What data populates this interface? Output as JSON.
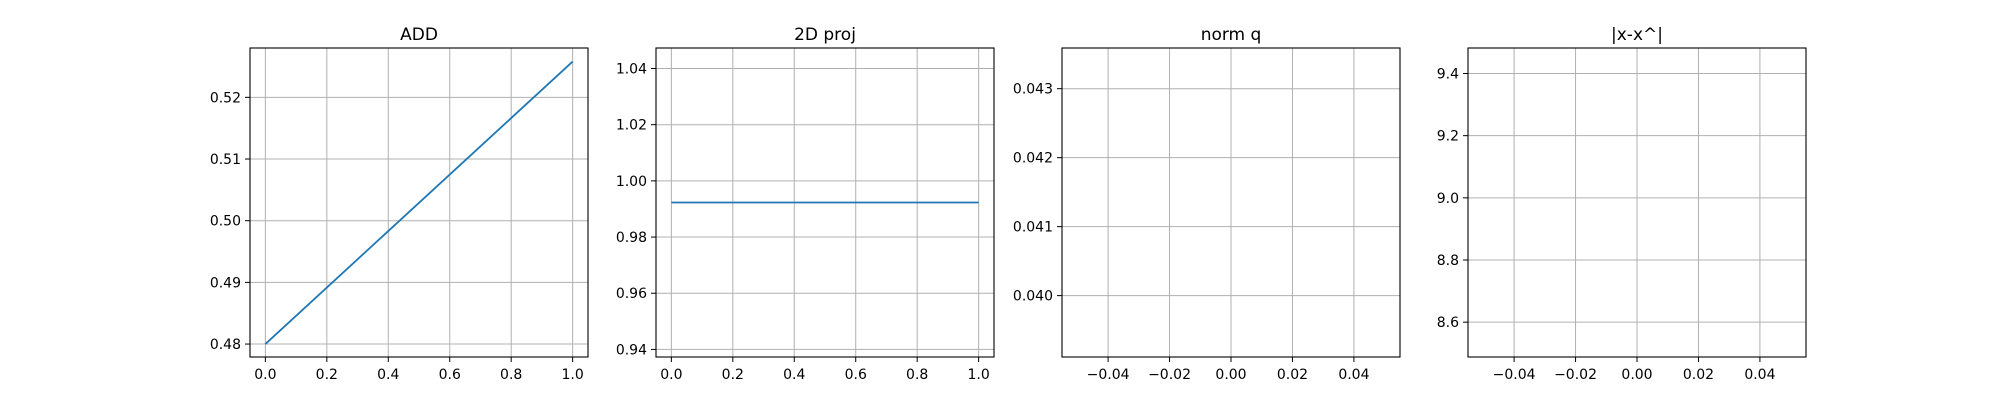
{
  "chart_data": [
    {
      "type": "line",
      "title": "ADD",
      "xlabel": "",
      "ylabel": "",
      "xlim": [
        -0.05,
        1.05
      ],
      "ylim": [
        0.4779,
        0.528
      ],
      "xticks": [
        0.0,
        0.2,
        0.4,
        0.6,
        0.8,
        1.0
      ],
      "xtick_labels": [
        "0.0",
        "0.2",
        "0.4",
        "0.6",
        "0.8",
        "1.0"
      ],
      "yticks": [
        0.48,
        0.49,
        0.5,
        0.51,
        0.52
      ],
      "ytick_labels": [
        "0.48",
        "0.49",
        "0.50",
        "0.51",
        "0.52"
      ],
      "grid": true,
      "series": [
        {
          "x": [
            0.0,
            1.0
          ],
          "y": [
            0.48,
            0.5258
          ],
          "color": "#1f77b4"
        }
      ]
    },
    {
      "type": "line",
      "title": "2D proj",
      "xlabel": "",
      "ylabel": "",
      "xlim": [
        -0.05,
        1.05
      ],
      "ylim": [
        0.9373,
        1.0473
      ],
      "xticks": [
        0.0,
        0.2,
        0.4,
        0.6,
        0.8,
        1.0
      ],
      "xtick_labels": [
        "0.0",
        "0.2",
        "0.4",
        "0.6",
        "0.8",
        "1.0"
      ],
      "yticks": [
        0.94,
        0.96,
        0.98,
        1.0,
        1.02,
        1.04
      ],
      "ytick_labels": [
        "0.94",
        "0.96",
        "0.98",
        "1.00",
        "1.02",
        "1.04"
      ],
      "grid": true,
      "series": [
        {
          "x": [
            0.0,
            1.0
          ],
          "y": [
            0.9923,
            0.9923
          ],
          "color": "#1f77b4"
        }
      ]
    },
    {
      "type": "line",
      "title": "norm q",
      "xlabel": "",
      "ylabel": "",
      "xlim": [
        -0.055,
        0.055
      ],
      "ylim": [
        0.03911,
        0.04359
      ],
      "xticks": [
        -0.04,
        -0.02,
        0.0,
        0.02,
        0.04
      ],
      "xtick_labels": [
        "−0.04",
        "−0.02",
        "0.00",
        "0.02",
        "0.04"
      ],
      "yticks": [
        0.04,
        0.041,
        0.042,
        0.043
      ],
      "ytick_labels": [
        "0.040",
        "0.041",
        "0.042",
        "0.043"
      ],
      "grid": true,
      "series": []
    },
    {
      "type": "line",
      "title": "|x-x^|",
      "xlabel": "",
      "ylabel": "",
      "xlim": [
        -0.055,
        0.055
      ],
      "ylim": [
        8.488,
        9.482
      ],
      "xticks": [
        -0.04,
        -0.02,
        0.0,
        0.02,
        0.04
      ],
      "xtick_labels": [
        "−0.04",
        "−0.02",
        "0.00",
        "0.02",
        "0.04"
      ],
      "yticks": [
        8.6,
        8.8,
        9.0,
        9.2,
        9.4
      ],
      "ytick_labels": [
        "8.6",
        "8.8",
        "9.0",
        "9.2",
        "9.4"
      ],
      "grid": true,
      "series": []
    }
  ]
}
